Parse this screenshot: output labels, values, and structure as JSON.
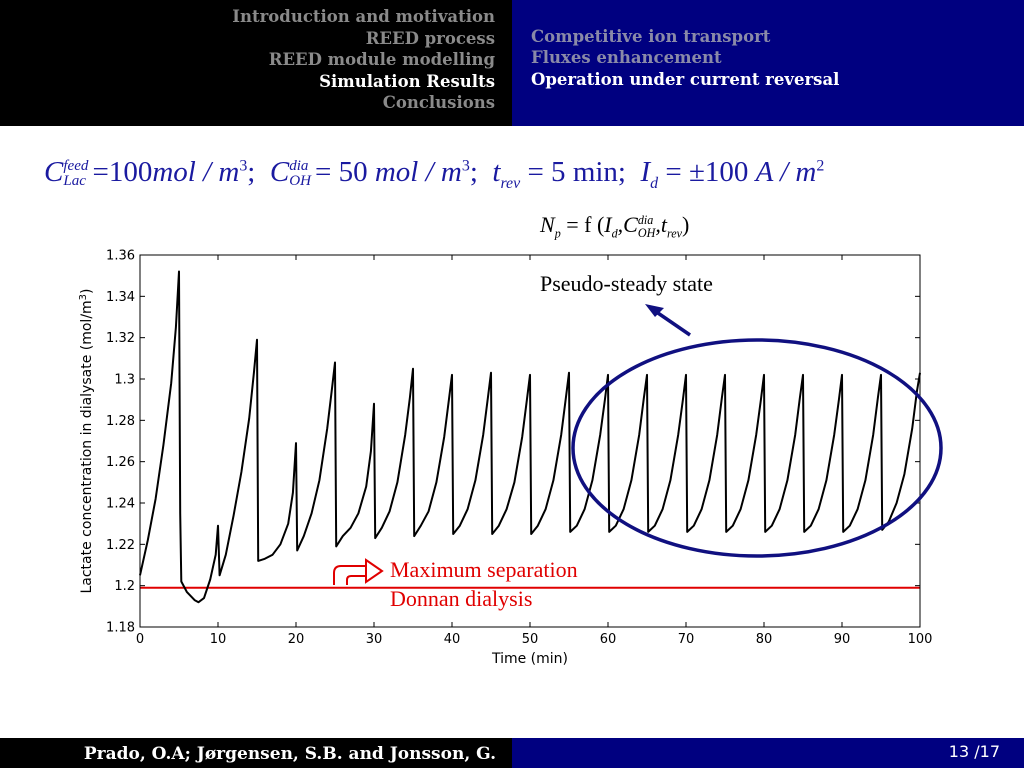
{
  "header": {
    "sections": [
      {
        "label": "Introduction and motivation",
        "active": false
      },
      {
        "label": "REED process",
        "active": false
      },
      {
        "label": "REED module modelling",
        "active": false
      },
      {
        "label": "Simulation Results",
        "active": true
      },
      {
        "label": "Conclusions",
        "active": false
      }
    ],
    "subsections": [
      {
        "label": "Competitive ion transport",
        "active": false
      },
      {
        "label": "Fluxes enhancement",
        "active": false
      },
      {
        "label": "Operation under current reversal",
        "active": true
      }
    ]
  },
  "equations": {
    "conditions": {
      "c_lac_feed": {
        "symbol": "C",
        "sup": "feed",
        "sub": "Lac",
        "value": "=100",
        "unit": "mol / m",
        "exp": "3",
        "sep": ";"
      },
      "c_oh_dia": {
        "symbol": "C",
        "sup": "dia",
        "sub": "OH",
        "value": "= 50",
        "unit": "mol / m",
        "exp": "3",
        "sep": ";"
      },
      "t_rev": {
        "symbol": "t",
        "sub": "rev",
        "value": "= 5",
        "unit": "min;"
      },
      "i_d": {
        "symbol": "I",
        "sub": "d",
        "value": "= ±100",
        "unit": "A / m",
        "exp": "2"
      }
    },
    "np_relation": {
      "symbol": "N",
      "sub": "p",
      "rest": "= f (",
      "i_sym": "I",
      "i_sub": "d",
      "c_sym": ",C",
      "c_sup": "dia",
      "c_sub": "OH",
      "t_sym": ",t",
      "t_sub": "rev",
      "close": ")"
    }
  },
  "chart_data": {
    "type": "line",
    "xlabel": "Time (min)",
    "ylabel": "Lactate concentration in dialysate (mol/m",
    "ylabel_exp": "3",
    "ylabel_close": ")",
    "xlim": [
      0,
      100
    ],
    "ylim": [
      1.18,
      1.36
    ],
    "xticks": [
      0,
      10,
      20,
      30,
      40,
      50,
      60,
      70,
      80,
      90,
      100
    ],
    "yticks": [
      1.18,
      1.2,
      1.22,
      1.24,
      1.26,
      1.28,
      1.3,
      1.32,
      1.34,
      1.36
    ],
    "ytick_labels": [
      "1.18",
      "1.2",
      "1.22",
      "1.24",
      "1.26",
      "1.28",
      "1.3",
      "1.32",
      "1.34",
      "1.36"
    ],
    "grid": false,
    "series": [
      {
        "color": "#000000",
        "points": [
          [
            0,
            1.205
          ],
          [
            1,
            1.222
          ],
          [
            2,
            1.242
          ],
          [
            3,
            1.268
          ],
          [
            4,
            1.298
          ],
          [
            4.6,
            1.325
          ],
          [
            5,
            1.352
          ],
          [
            5.15,
            1.235
          ],
          [
            5.3,
            1.202
          ],
          [
            6,
            1.197
          ],
          [
            7,
            1.193
          ],
          [
            7.5,
            1.192
          ],
          [
            8.2,
            1.194
          ],
          [
            9,
            1.203
          ],
          [
            9.7,
            1.215
          ],
          [
            10,
            1.229
          ],
          [
            10.2,
            1.205
          ],
          [
            11,
            1.215
          ],
          [
            12,
            1.234
          ],
          [
            13,
            1.255
          ],
          [
            14,
            1.281
          ],
          [
            14.6,
            1.303
          ],
          [
            15,
            1.319
          ],
          [
            15.15,
            1.212
          ],
          [
            16,
            1.213
          ],
          [
            17,
            1.215
          ],
          [
            18,
            1.22
          ],
          [
            19,
            1.23
          ],
          [
            19.6,
            1.245
          ],
          [
            20,
            1.269
          ],
          [
            20.15,
            1.217
          ],
          [
            21,
            1.224
          ],
          [
            22,
            1.235
          ],
          [
            23,
            1.251
          ],
          [
            24,
            1.276
          ],
          [
            24.6,
            1.295
          ],
          [
            25,
            1.308
          ],
          [
            25.15,
            1.219
          ],
          [
            26,
            1.224
          ],
          [
            27,
            1.228
          ],
          [
            28,
            1.235
          ],
          [
            29,
            1.248
          ],
          [
            29.6,
            1.265
          ],
          [
            30,
            1.288
          ],
          [
            30.15,
            1.223
          ],
          [
            31,
            1.228
          ],
          [
            32,
            1.236
          ],
          [
            33,
            1.25
          ],
          [
            34,
            1.273
          ],
          [
            34.6,
            1.291
          ],
          [
            35,
            1.305
          ],
          [
            35.15,
            1.224
          ],
          [
            36,
            1.229
          ],
          [
            37,
            1.236
          ],
          [
            38,
            1.25
          ],
          [
            39,
            1.272
          ],
          [
            39.6,
            1.29
          ],
          [
            40,
            1.302
          ],
          [
            40.15,
            1.225
          ],
          [
            41,
            1.229
          ],
          [
            42,
            1.237
          ],
          [
            43,
            1.251
          ],
          [
            44,
            1.273
          ],
          [
            44.6,
            1.291
          ],
          [
            45,
            1.303
          ],
          [
            45.15,
            1.225
          ],
          [
            46,
            1.229
          ],
          [
            47,
            1.237
          ],
          [
            48,
            1.25
          ],
          [
            49,
            1.272
          ],
          [
            49.6,
            1.29
          ],
          [
            50,
            1.302
          ],
          [
            50.15,
            1.225
          ],
          [
            51,
            1.229
          ],
          [
            52,
            1.237
          ],
          [
            53,
            1.251
          ],
          [
            54,
            1.273
          ],
          [
            54.6,
            1.291
          ],
          [
            55,
            1.303
          ],
          [
            55.15,
            1.226
          ],
          [
            56,
            1.229
          ],
          [
            57,
            1.237
          ],
          [
            58,
            1.251
          ],
          [
            59,
            1.273
          ],
          [
            59.6,
            1.29
          ],
          [
            60,
            1.302
          ],
          [
            60.15,
            1.226
          ],
          [
            61,
            1.229
          ],
          [
            62,
            1.237
          ],
          [
            63,
            1.251
          ],
          [
            64,
            1.273
          ],
          [
            64.6,
            1.291
          ],
          [
            65,
            1.302
          ],
          [
            65.15,
            1.226
          ],
          [
            66,
            1.229
          ],
          [
            67,
            1.237
          ],
          [
            68,
            1.251
          ],
          [
            69,
            1.273
          ],
          [
            69.6,
            1.29
          ],
          [
            70,
            1.302
          ],
          [
            70.15,
            1.226
          ],
          [
            71,
            1.229
          ],
          [
            72,
            1.237
          ],
          [
            73,
            1.251
          ],
          [
            74,
            1.273
          ],
          [
            74.6,
            1.291
          ],
          [
            75,
            1.302
          ],
          [
            75.15,
            1.226
          ],
          [
            76,
            1.229
          ],
          [
            77,
            1.237
          ],
          [
            78,
            1.251
          ],
          [
            79,
            1.273
          ],
          [
            79.6,
            1.29
          ],
          [
            80,
            1.302
          ],
          [
            80.15,
            1.226
          ],
          [
            81,
            1.229
          ],
          [
            82,
            1.237
          ],
          [
            83,
            1.251
          ],
          [
            84,
            1.273
          ],
          [
            84.6,
            1.291
          ],
          [
            85,
            1.302
          ],
          [
            85.15,
            1.226
          ],
          [
            86,
            1.229
          ],
          [
            87,
            1.237
          ],
          [
            88,
            1.251
          ],
          [
            89,
            1.273
          ],
          [
            89.6,
            1.29
          ],
          [
            90,
            1.302
          ],
          [
            90.15,
            1.226
          ],
          [
            91,
            1.229
          ],
          [
            92,
            1.237
          ],
          [
            93,
            1.251
          ],
          [
            94,
            1.273
          ],
          [
            94.6,
            1.291
          ],
          [
            95,
            1.302
          ],
          [
            95.15,
            1.227
          ],
          [
            96,
            1.231
          ],
          [
            97,
            1.24
          ],
          [
            98,
            1.254
          ],
          [
            99,
            1.276
          ],
          [
            99.6,
            1.294
          ],
          [
            100,
            1.303
          ]
        ]
      }
    ],
    "reference_line": {
      "y": 1.199,
      "color": "#e00000"
    },
    "annotations": {
      "pseudo_steady": "Pseudo-steady state",
      "max_sep_line1": "Maximum separation",
      "max_sep_line2": "Donnan dialysis"
    }
  },
  "footer": {
    "authors": "Prado, O.A; Jørgensen, S.B. and Jonsson, G.",
    "page": "13 /17"
  },
  "colors": {
    "header_left": "#000000",
    "header_right": "#000080",
    "equation": "#1a1aa0",
    "annotation_red": "#e00000",
    "ellipse": "#101080"
  }
}
